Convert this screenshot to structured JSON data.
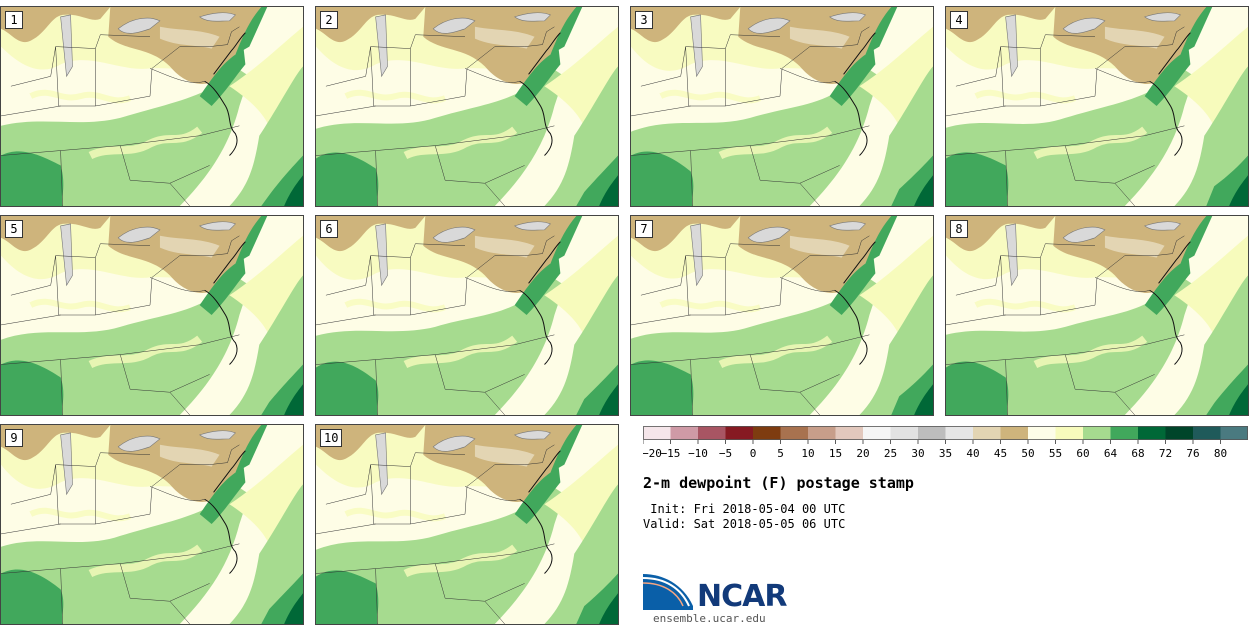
{
  "title": "2-m dewpoint (F) postage stamp",
  "init_text": " Init: Fri 2018-05-04 00 UTC",
  "valid_text": "Valid: Sat 2018-05-05 06 UTC",
  "logo_text": "NCAR",
  "site_text": "ensemble.ucar.edu",
  "panels": [
    {
      "label": "1"
    },
    {
      "label": "2"
    },
    {
      "label": "3"
    },
    {
      "label": "4"
    },
    {
      "label": "5"
    },
    {
      "label": "6"
    },
    {
      "label": "7"
    },
    {
      "label": "8"
    },
    {
      "label": "9"
    },
    {
      "label": "10"
    }
  ],
  "colorbar": {
    "tick_labels": [
      "−20",
      "−15",
      "−10",
      "−5",
      "0",
      "5",
      "10",
      "15",
      "20",
      "25",
      "30",
      "35",
      "40",
      "45",
      "50",
      "55",
      "60",
      "64",
      "68",
      "72",
      "76",
      "80"
    ],
    "colors": [
      "#f5e6ea",
      "#cf9aa6",
      "#a85563",
      "#861a22",
      "#7e3c10",
      "#a8724f",
      "#c79e8a",
      "#e2c8bd",
      "#f5f5f5",
      "#e2e2e2",
      "#bdbdbd",
      "#e6e6e6",
      "#e3d5b3",
      "#ceb47c",
      "#fdfde8",
      "#f7fbbc",
      "#a6db8f",
      "#41a85c",
      "#006837",
      "#00452a",
      "#1f5a5a",
      "#4a7a80"
    ]
  },
  "map_colors": {
    "c45": "#ceb47c",
    "c40": "#e3d5b3",
    "c50": "#fefde6",
    "c55": "#f7fbbc",
    "c60": "#a6db8f",
    "c64": "#41a85c",
    "c68": "#006837",
    "lake": "#d9d9d9"
  }
}
